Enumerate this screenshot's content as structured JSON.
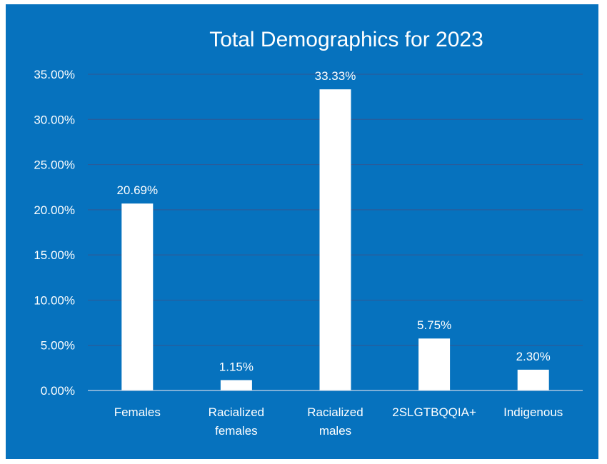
{
  "chart_data": {
    "type": "bar",
    "title": "Total Demographics for 2023",
    "categories": [
      [
        "Females"
      ],
      [
        "Racialized",
        "females"
      ],
      [
        "Racialized",
        "males"
      ],
      [
        "2SLGTBQQIA+"
      ],
      [
        "Indigenous"
      ]
    ],
    "values": [
      20.69,
      1.15,
      33.33,
      5.75,
      2.3
    ],
    "data_labels": [
      "20.69%",
      "1.15%",
      "33.33%",
      "5.75%",
      "2.30%"
    ],
    "ylim": [
      0,
      35
    ],
    "yticks": [
      0,
      5,
      10,
      15,
      20,
      25,
      30,
      35
    ],
    "ytick_labels": [
      "0.00%",
      "5.00%",
      "10.00%",
      "15.00%",
      "20.00%",
      "25.00%",
      "30.00%",
      "35.00%"
    ],
    "grid": true,
    "legend": "none",
    "colors": {
      "background": "#0672BE",
      "bar": "#FFFFFF",
      "gridline": "#2A5C9A",
      "text": "#FFFFFF"
    }
  }
}
